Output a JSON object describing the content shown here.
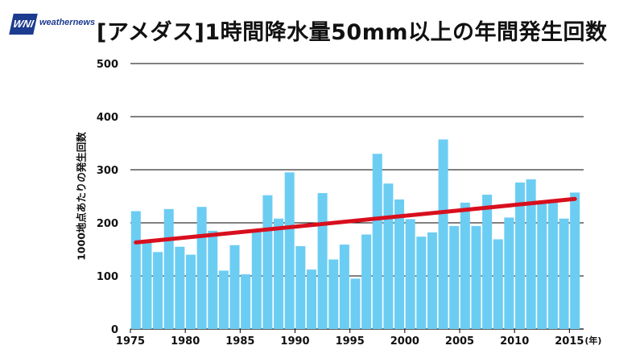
{
  "logo": {
    "mark": "WNI",
    "text": "weathernews"
  },
  "chart_data": {
    "type": "bar",
    "title": "[アメダス]1時間降水量50mm以上の年間発生回数",
    "ylabel": "1000地点あたりの発生回数",
    "xlabel": "",
    "x_unit_label": "(年)",
    "ylim": [
      0,
      500
    ],
    "yticks": [
      0,
      100,
      200,
      300,
      400,
      500
    ],
    "xticks": [
      1975,
      1980,
      1985,
      1990,
      1995,
      2000,
      2005,
      2010,
      2015
    ],
    "grid": true,
    "categories": [
      1976,
      1977,
      1978,
      1979,
      1980,
      1981,
      1982,
      1983,
      1984,
      1985,
      1986,
      1987,
      1988,
      1989,
      1990,
      1991,
      1992,
      1993,
      1994,
      1995,
      1996,
      1997,
      1998,
      1999,
      2000,
      2001,
      2002,
      2003,
      2004,
      2005,
      2006,
      2007,
      2008,
      2009,
      2010,
      2011,
      2012,
      2013,
      2014,
      2015,
      2016
    ],
    "values": [
      222,
      168,
      145,
      226,
      155,
      140,
      230,
      185,
      110,
      158,
      103,
      185,
      252,
      208,
      295,
      156,
      112,
      256,
      131,
      159,
      95,
      178,
      330,
      274,
      244,
      207,
      174,
      182,
      357,
      194,
      238,
      194,
      253,
      169,
      210,
      276,
      282,
      238,
      239,
      208,
      257
    ],
    "trend": {
      "x": [
        1976,
        2016
      ],
      "y": [
        163,
        245
      ]
    },
    "colors": {
      "bar": "#6ccdf3",
      "trend": "#d80f1e",
      "grid": "#000000"
    }
  }
}
